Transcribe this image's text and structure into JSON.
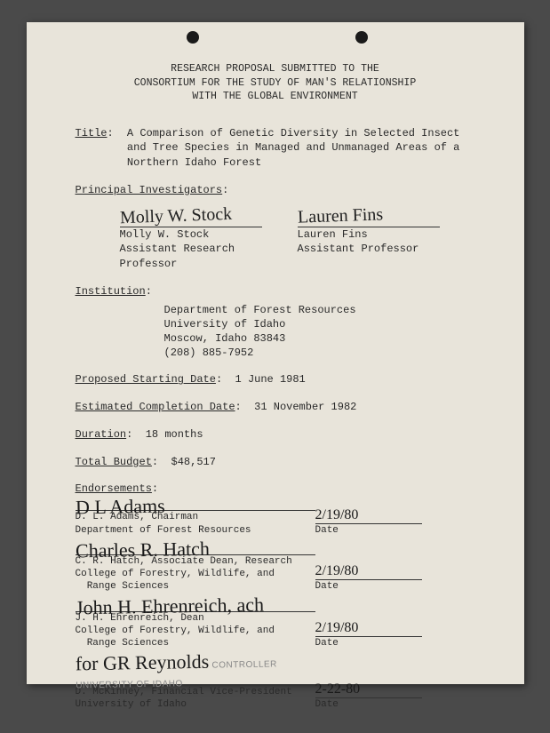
{
  "header": {
    "line1": "RESEARCH PROPOSAL SUBMITTED TO THE",
    "line2": "CONSORTIUM FOR THE STUDY OF MAN'S RELATIONSHIP",
    "line3": "WITH THE GLOBAL ENVIRONMENT"
  },
  "title": {
    "label": "Title",
    "text": "A Comparison of Genetic Diversity in Selected Insect and Tree Species in Managed and Unmanaged Areas of a Northern Idaho Forest"
  },
  "pi": {
    "label": "Principal Investigators",
    "people": [
      {
        "sig": "Molly W. Stock",
        "name": "Molly W. Stock",
        "role": "Assistant Research Professor"
      },
      {
        "sig": "Lauren Fins",
        "name": "Lauren Fins",
        "role": "Assistant Professor"
      }
    ]
  },
  "institution": {
    "label": "Institution",
    "lines": [
      "Department of Forest Resources",
      "University of Idaho",
      "Moscow, Idaho 83843",
      "(208) 885-7952"
    ]
  },
  "start": {
    "label": "Proposed Starting Date",
    "value": "1 June 1981"
  },
  "completion": {
    "label": "Estimated Completion Date",
    "value": "31 November 1982"
  },
  "duration": {
    "label": "Duration",
    "value": "18 months"
  },
  "budget": {
    "label": "Total Budget",
    "value": "$48,517"
  },
  "endorsements": {
    "label": "Endorsements",
    "date_label": "Date",
    "items": [
      {
        "sig": "D L Adams",
        "date": "2/19/80",
        "name": "D. L. Adams, Chairman",
        "affil": "Department of Forest Resources"
      },
      {
        "sig": "Charles R. Hatch",
        "date": "2/19/80",
        "name": "C. R. Hatch, Associate Dean, Research",
        "affil": "College of Forestry, Wildlife, and\n  Range Sciences"
      },
      {
        "sig": "John H. Ehrenreich, ach",
        "date": "2/19/80",
        "name": "J. H. Ehrenreich, Dean",
        "affil": "College of Forestry, Wildlife, and\n  Range Sciences"
      },
      {
        "sig": "GR Reynolds",
        "date": "2-22-80",
        "name": "D. McKinney, Financial Vice-President",
        "affil": "University of Idaho",
        "prefix": "for",
        "stamp": "CONTROLLER UNIVERSITY OF IDAHO"
      }
    ]
  }
}
